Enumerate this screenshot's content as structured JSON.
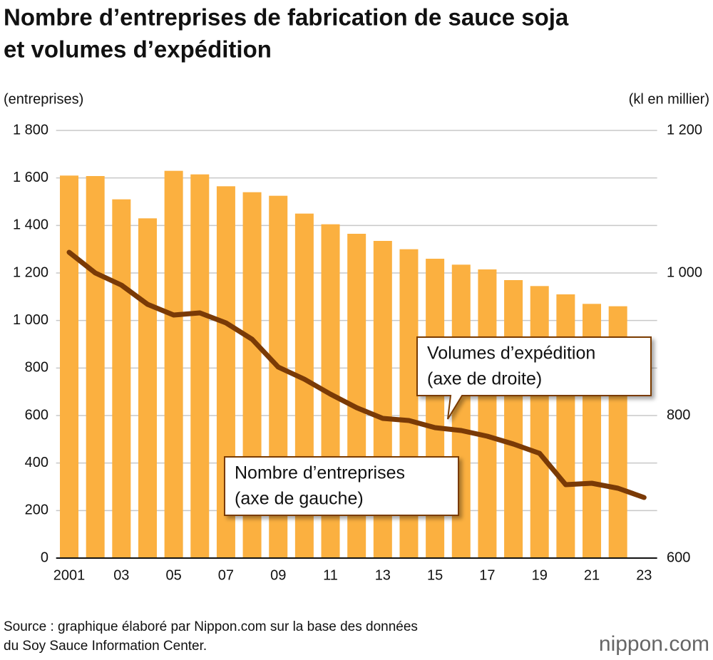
{
  "chart_data": {
    "type": "bar-line",
    "title": [
      "Nombre d’entreprises de fabrication de sauce soja",
      "et volumes d’expédition"
    ],
    "y_label": "(entreprises)",
    "y2_label": "(kl en millier)",
    "categories": [
      "2001",
      null,
      "03",
      null,
      "05",
      null,
      "07",
      null,
      "09",
      null,
      "11",
      null,
      "13",
      null,
      "15",
      null,
      "17",
      null,
      "19",
      null,
      "21",
      null,
      "23"
    ],
    "series": [
      {
        "type": "bar",
        "color": "#fbb040",
        "axis": "y",
        "values": [
          1610,
          1608,
          1510,
          1430,
          1630,
          1615,
          1565,
          1540,
          1525,
          1450,
          1405,
          1365,
          1335,
          1300,
          1260,
          1235,
          1215,
          1170,
          1145,
          1110,
          1070,
          1060,
          null
        ]
      },
      {
        "type": "line",
        "color": "#7a3a06",
        "axis": "y2",
        "values": [
          1029,
          1000,
          983,
          956,
          941,
          944,
          930,
          907,
          868,
          851,
          830,
          811,
          796,
          793,
          783,
          779,
          771,
          760,
          747,
          703,
          705,
          698,
          685
        ]
      }
    ],
    "ylim": [
      0,
      1800
    ],
    "yticks": [
      0,
      200,
      400,
      600,
      800,
      {
        "value": 1000,
        "label": "1 000"
      },
      {
        "value": 1200,
        "label": "1 200"
      },
      {
        "value": 1400,
        "label": "1 400"
      },
      {
        "value": 1600,
        "label": "1 600"
      },
      {
        "value": 1800,
        "label": "1 800"
      }
    ],
    "y2lim": [
      600,
      1200
    ],
    "y2ticks": [
      600,
      800,
      {
        "value": 1000,
        "label": "1 000"
      },
      {
        "value": 1200,
        "label": "1 200"
      }
    ],
    "grid": true,
    "annotations": [
      {
        "lines": [
          "Volumes d’expédition",
          "(axe de droite)"
        ]
      },
      {
        "lines": [
          "Nombre d’entreprises",
          "(axe de gauche)"
        ]
      }
    ],
    "source": [
      "Source : graphique élaboré par Nippon.com sur la base des données",
      "du Soy Sauce Information Center."
    ],
    "logo": "nippon.com"
  }
}
